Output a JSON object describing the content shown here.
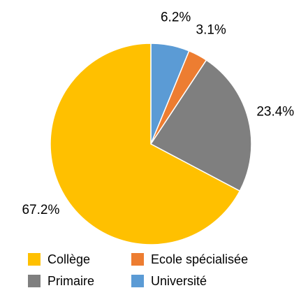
{
  "chart_data": {
    "type": "pie",
    "categories": [
      "Université",
      "Ecole spécialisée",
      "Primaire",
      "Collège"
    ],
    "values": [
      6.2,
      3.1,
      23.4,
      67.2
    ],
    "value_labels": [
      "6.2%",
      "3.1%",
      "23.4%",
      "67.2%"
    ],
    "colors": [
      "#5B9BD5",
      "#ED7D31",
      "#7F7F7F",
      "#FFC000"
    ],
    "legend_order": [
      3,
      1,
      2,
      0
    ]
  }
}
